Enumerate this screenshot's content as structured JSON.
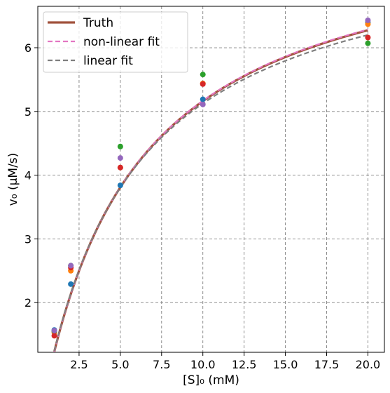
{
  "chart_data": {
    "type": "scatter",
    "xlabel": "[S]₀ (mM)",
    "ylabel": "v₀ (μM/s)",
    "xlim": [
      0.0,
      21.0
    ],
    "ylim": [
      1.22,
      6.65
    ],
    "xticks": [
      2.5,
      5.0,
      7.5,
      10.0,
      12.5,
      15.0,
      17.5,
      20.0
    ],
    "xtick_labels": [
      "2.5",
      "5.0",
      "7.5",
      "10.0",
      "12.5",
      "15.0",
      "17.5",
      "20.0"
    ],
    "yticks": [
      2,
      3,
      4,
      5,
      6
    ],
    "ytick_labels": [
      "2",
      "3",
      "4",
      "5",
      "6"
    ],
    "grid": true,
    "legend_position": "top-left",
    "lines": [
      {
        "name": "Truth",
        "color": "#a0523c",
        "style": "solid",
        "vmax": 8.0,
        "km": 5.5
      },
      {
        "name": "non-linear fit",
        "color": "#e377c2",
        "style": "dashed",
        "vmax": 8.02,
        "km": 5.52
      },
      {
        "name": "linear fit",
        "color": "#7f7f7f",
        "style": "dashed",
        "vmax": 7.85,
        "km": 5.32
      }
    ],
    "scatter_series": [
      {
        "color": "#1f77b4",
        "x": [
          1,
          2,
          5,
          10,
          20
        ],
        "y": [
          1.57,
          2.29,
          3.84,
          5.19,
          6.4
        ]
      },
      {
        "color": "#ff7f0e",
        "x": [
          1,
          2,
          5,
          10,
          20
        ],
        "y": [
          1.53,
          2.5,
          4.12,
          5.44,
          6.37
        ]
      },
      {
        "color": "#2ca02c",
        "x": [
          1,
          2,
          5,
          10,
          20
        ],
        "y": [
          1.55,
          2.58,
          4.45,
          5.58,
          6.07
        ]
      },
      {
        "color": "#d62728",
        "x": [
          1,
          2,
          5,
          10,
          20
        ],
        "y": [
          1.48,
          2.55,
          4.12,
          5.43,
          6.16
        ]
      },
      {
        "color": "#9467bd",
        "x": [
          1,
          2,
          5,
          10,
          20
        ],
        "y": [
          1.56,
          2.58,
          4.27,
          5.11,
          6.43
        ]
      }
    ]
  }
}
